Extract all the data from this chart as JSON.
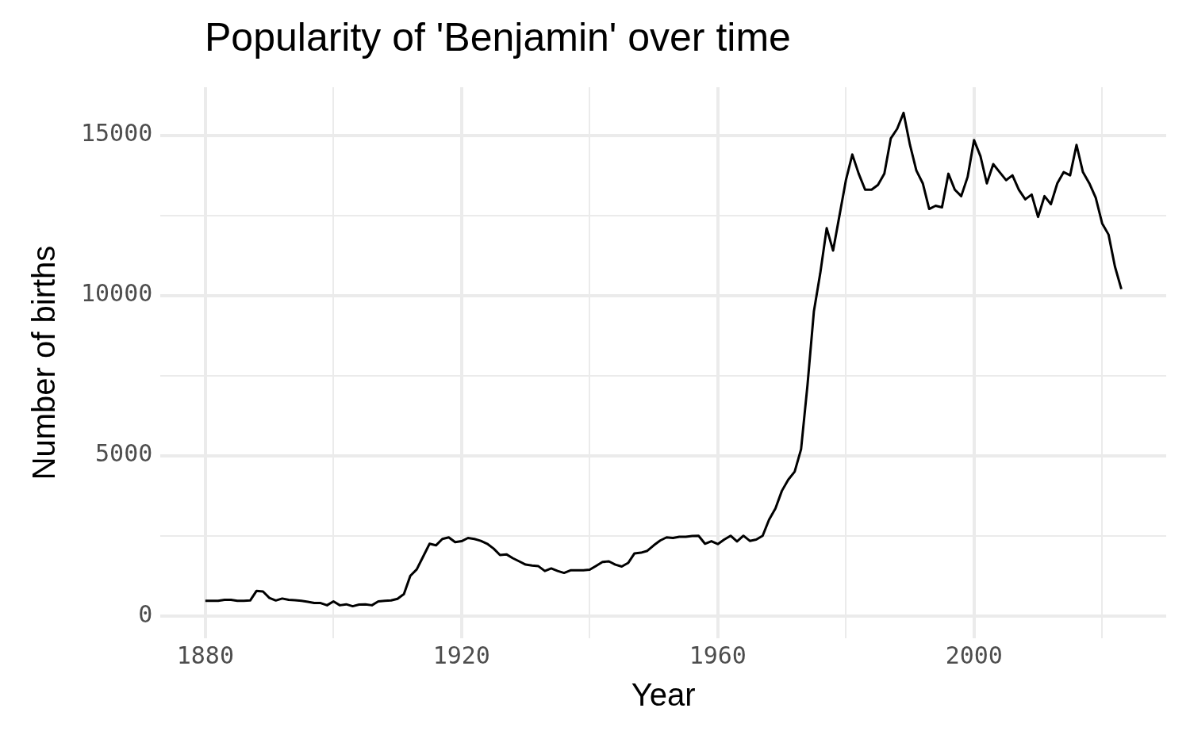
{
  "chart_data": {
    "type": "line",
    "title": "Popularity of 'Benjamin' over time",
    "xlabel": "Year",
    "ylabel": "Number of births",
    "x": [
      1880,
      1881,
      1882,
      1883,
      1884,
      1885,
      1886,
      1887,
      1888,
      1889,
      1890,
      1891,
      1892,
      1893,
      1894,
      1895,
      1896,
      1897,
      1898,
      1899,
      1900,
      1901,
      1902,
      1903,
      1904,
      1905,
      1906,
      1907,
      1908,
      1909,
      1910,
      1911,
      1912,
      1913,
      1914,
      1915,
      1916,
      1917,
      1918,
      1919,
      1920,
      1921,
      1922,
      1923,
      1924,
      1925,
      1926,
      1927,
      1928,
      1929,
      1930,
      1931,
      1932,
      1933,
      1934,
      1935,
      1936,
      1937,
      1938,
      1939,
      1940,
      1941,
      1942,
      1943,
      1944,
      1945,
      1946,
      1947,
      1948,
      1949,
      1950,
      1951,
      1952,
      1953,
      1954,
      1955,
      1956,
      1957,
      1958,
      1959,
      1960,
      1961,
      1962,
      1963,
      1964,
      1965,
      1966,
      1967,
      1968,
      1969,
      1970,
      1971,
      1972,
      1973,
      1974,
      1975,
      1976,
      1977,
      1978,
      1979,
      1980,
      1981,
      1982,
      1983,
      1984,
      1985,
      1986,
      1987,
      1988,
      1989,
      1990,
      1991,
      1992,
      1993,
      1994,
      1995,
      1996,
      1997,
      1998,
      1999,
      2000,
      2001,
      2002,
      2003,
      2004,
      2005,
      2006,
      2007,
      2008,
      2009,
      2010,
      2011,
      2012,
      2013,
      2014,
      2015,
      2016,
      2017,
      2018,
      2019,
      2020,
      2021,
      2022,
      2023
    ],
    "series": [
      {
        "color": "#000000",
        "values": [
          470,
          470,
          470,
          500,
          500,
          470,
          470,
          480,
          780,
          760,
          560,
          480,
          540,
          500,
          490,
          470,
          440,
          400,
          400,
          330,
          450,
          330,
          360,
          300,
          350,
          360,
          330,
          450,
          470,
          480,
          530,
          680,
          1250,
          1450,
          1850,
          2250,
          2200,
          2400,
          2450,
          2300,
          2330,
          2430,
          2400,
          2340,
          2250,
          2100,
          1900,
          1920,
          1800,
          1700,
          1600,
          1570,
          1550,
          1400,
          1480,
          1400,
          1340,
          1420,
          1420,
          1420,
          1440,
          1560,
          1680,
          1700,
          1600,
          1540,
          1650,
          1950,
          1970,
          2030,
          2200,
          2350,
          2450,
          2430,
          2470,
          2470,
          2490,
          2500,
          2250,
          2330,
          2240,
          2380,
          2500,
          2320,
          2500,
          2340,
          2380,
          2500,
          3000,
          3350,
          3900,
          4250,
          4500,
          5200,
          7200,
          9500,
          10700,
          12100,
          11400,
          12500,
          13600,
          14400,
          13800,
          13300,
          13300,
          13450,
          13800,
          14900,
          15200,
          15700,
          14700,
          13900,
          13500,
          12700,
          12800,
          12750,
          13800,
          13300,
          13100,
          13700,
          14850,
          14350,
          13500,
          14100,
          13850,
          13600,
          13750,
          13300,
          13000,
          13150,
          12450,
          13100,
          12850,
          13500,
          13850,
          13750,
          14700,
          13850,
          13500,
          13050,
          12250,
          11900,
          10900,
          10200
        ]
      }
    ],
    "xlim": [
      1873,
      2030
    ],
    "xticks": [
      1880,
      {
        "value": 1900,
        "label": null
      },
      1920,
      {
        "value": 1940,
        "label": null
      },
      1960,
      {
        "value": 1980,
        "label": null
      },
      2000,
      {
        "value": 2020,
        "label": null
      }
    ],
    "ylim": [
      -700,
      16500
    ],
    "yticks": [
      0,
      {
        "value": 2500,
        "label": null
      },
      5000,
      {
        "value": 7500,
        "label": null
      },
      10000,
      {
        "value": 12500,
        "label": null
      },
      15000
    ],
    "grid": true,
    "legend": false,
    "marker": "none",
    "line_style": "solid"
  }
}
